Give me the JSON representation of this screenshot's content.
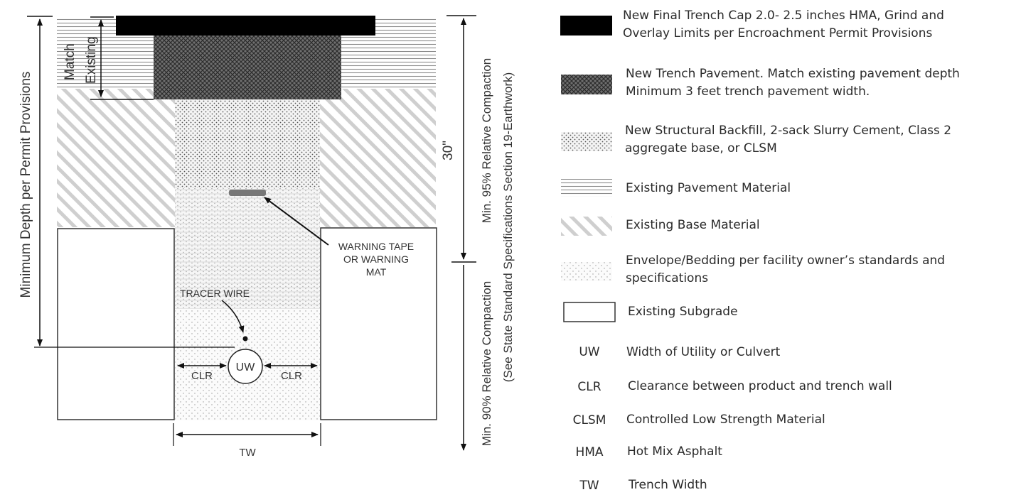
{
  "diagram": {
    "labels": {
      "match": "Match",
      "existing": "Existing",
      "min_depth": "Minimum Depth per Permit Provisions",
      "dim_30": "30\"",
      "compaction_95": "Min. 95% Relative Compaction",
      "spec_note": "(See State Standard Specifications Section 19-Earthwork)",
      "compaction_90": "Min. 90% Relative Compaction",
      "warning_line1": "WARNING TAPE",
      "warning_line2": "OR WARNING",
      "warning_line3": "MAT",
      "tracer_wire": "TRACER WIRE",
      "uw": "UW",
      "clr_left": "CLR",
      "clr_right": "CLR",
      "tw": "TW"
    }
  },
  "legend": {
    "items": [
      {
        "swatch": "solid-black",
        "lines": [
          "New Final Trench Cap 2.0- 2.5 inches HMA, Grind and",
          "Overlay Limits per Encroachment Permit Provisions"
        ]
      },
      {
        "swatch": "crosshatch",
        "lines": [
          "New Trench Pavement.  Match existing pavement depth",
          "Minimum 3 feet trench pavement width."
        ]
      },
      {
        "swatch": "dense-dots",
        "lines": [
          "New Structural Backfill, 2-sack Slurry Cement, Class 2",
          "aggregate base, or CLSM"
        ]
      },
      {
        "swatch": "horizontal-lines",
        "lines": [
          "Existing Pavement Material"
        ]
      },
      {
        "swatch": "diagonal-lines",
        "lines": [
          "Existing Base Material"
        ]
      },
      {
        "swatch": "light-dots",
        "lines": [
          "Envelope/Bedding per facility owner’s standards and",
          "specifications"
        ]
      },
      {
        "swatch": "empty-box",
        "lines": [
          "Existing Subgrade"
        ]
      }
    ],
    "abbreviations": [
      {
        "abbr": "UW",
        "meaning": "Width of Utility or Culvert"
      },
      {
        "abbr": "CLR",
        "meaning": "Clearance between product and trench wall"
      },
      {
        "abbr": "CLSM",
        "meaning": "Controlled Low Strength Material"
      },
      {
        "abbr": "HMA",
        "meaning": "Hot Mix Asphalt"
      },
      {
        "abbr": "TW",
        "meaning": "Trench Width"
      }
    ]
  }
}
